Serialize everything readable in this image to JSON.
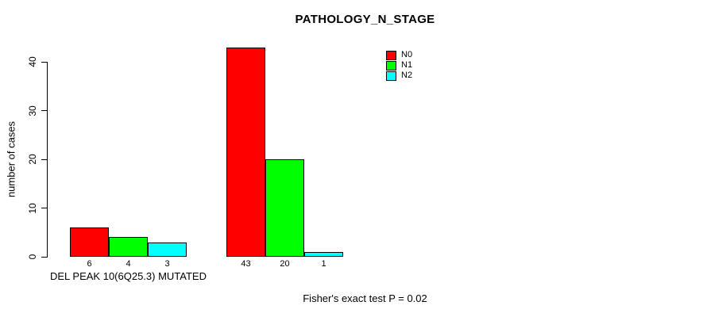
{
  "chart_data": {
    "type": "bar",
    "title": "PATHOLOGY_N_STAGE",
    "ylabel": "number of cases",
    "xlabel": "",
    "ylim": [
      0,
      43
    ],
    "yticks": [
      0,
      10,
      20,
      30,
      40
    ],
    "grid": false,
    "bar_border_color": "#000000",
    "legend_position": "top-right",
    "categories": [
      "DEL PEAK 10(6Q25.3) MUTATED",
      ""
    ],
    "series": [
      {
        "name": "N0",
        "color": "#FF0000",
        "values": [
          6,
          43
        ]
      },
      {
        "name": "N1",
        "color": "#00FF00",
        "values": [
          4,
          20
        ]
      },
      {
        "name": "N2",
        "color": "#00FFFF",
        "values": [
          3,
          1
        ]
      }
    ],
    "bar_value_labels": [
      [
        "6",
        "4",
        "3"
      ],
      [
        "43",
        "20",
        "1"
      ]
    ],
    "annotation": "Fisher's exact test P = 0.02"
  }
}
